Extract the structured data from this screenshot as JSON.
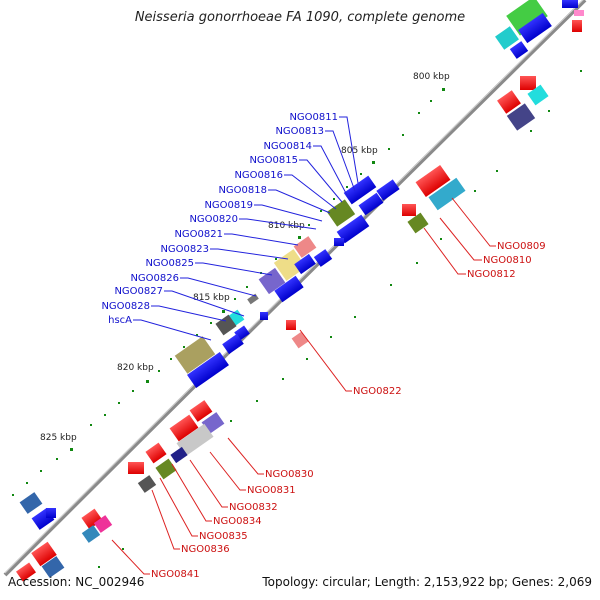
{
  "title": "Neisseria gonorrhoeae FA 1090, complete genome",
  "footer": {
    "accession": "Accession: NC_002946",
    "topology": "Topology: circular; Length: 2,153,922 bp; Genes: 2,069"
  },
  "ticks": [
    {
      "label": "800 kbp"
    },
    {
      "label": "805 kbp"
    },
    {
      "label": "810 kbp"
    },
    {
      "label": "815 kbp"
    },
    {
      "label": "820 kbp"
    },
    {
      "label": "825 kbp"
    }
  ],
  "gene_labels_left": [
    "NGO0811",
    "NGO0813",
    "NGO0814",
    "NGO0815",
    "NGO0816",
    "NGO0818",
    "NGO0819",
    "NGO0820",
    "NGO0821",
    "NGO0823",
    "NGO0825",
    "NGO0826",
    "NGO0827",
    "NGO0828",
    "hscA"
  ],
  "gene_labels_right_upper": [
    "NGO0809",
    "NGO0810",
    "NGO0812"
  ],
  "gene_labels_right_mid": [
    "NGO0822"
  ],
  "gene_labels_right_lower": [
    "NGO0830",
    "NGO0831",
    "NGO0832",
    "NGO0834",
    "NGO0835",
    "NGO0836",
    "NGO0841"
  ],
  "colors": {
    "left_label": "#1010cc",
    "right_label": "#cc1111",
    "backbone": "#888888",
    "tick": "#118811"
  }
}
